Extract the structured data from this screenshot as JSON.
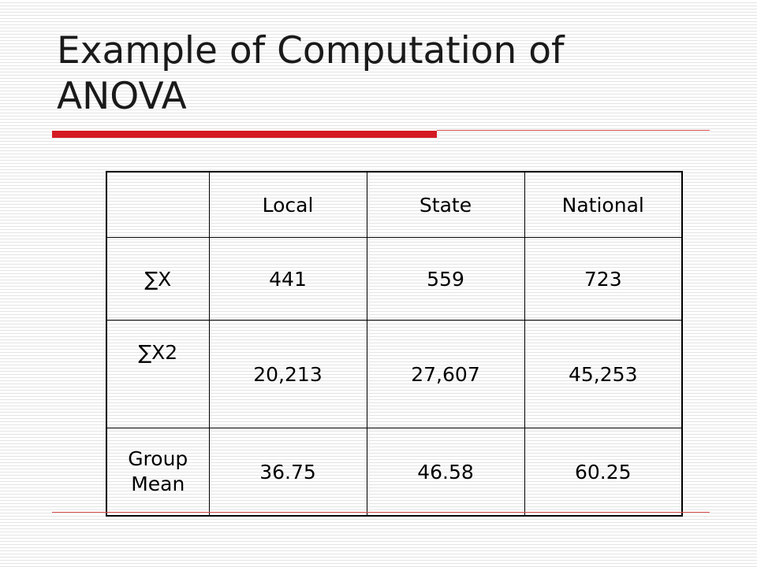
{
  "slide": {
    "title": "Example of Computation of ANOVA",
    "accent_color": "#d41b24"
  },
  "table": {
    "corner": "",
    "columns": [
      "Local",
      "State",
      "National"
    ],
    "rows": [
      {
        "label": "∑X",
        "values": [
          "441",
          "559",
          "723"
        ]
      },
      {
        "label": "∑X2",
        "values": [
          "20,213",
          "27,607",
          "45,253"
        ]
      },
      {
        "label": "Group Mean",
        "values": [
          "36.75",
          "46.58",
          "60.25"
        ]
      }
    ]
  }
}
